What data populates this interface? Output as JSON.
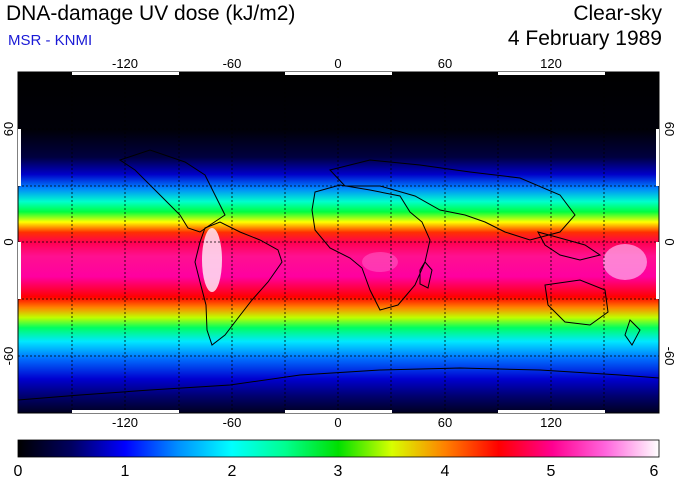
{
  "header": {
    "title": "DNA-damage UV dose (kJ/m2)",
    "subtitle": "MSR - KNMI",
    "sky_condition": "Clear-sky",
    "date": "4 February 1989"
  },
  "map": {
    "lon_ticks_top": [
      "-120",
      "-60",
      "0",
      "60",
      "120"
    ],
    "lon_ticks_bottom": [
      "-120",
      "-60",
      "0",
      "60",
      "120"
    ],
    "lat_ticks_left": [
      "60",
      "0",
      "-60"
    ],
    "lat_ticks_right": [
      "60",
      "0",
      "-60"
    ],
    "lon_range": [
      -180,
      180
    ],
    "lat_range": [
      -90,
      90
    ],
    "gridlines": "dashed every 30 degrees"
  },
  "colorbar": {
    "labels": [
      "0",
      "1",
      "2",
      "3",
      "4",
      "5",
      "6"
    ],
    "min": 0,
    "max": 6,
    "stops": [
      {
        "value": 0.0,
        "color": "#000000"
      },
      {
        "value": 0.5,
        "color": "#000060"
      },
      {
        "value": 1.0,
        "color": "#0000ff"
      },
      {
        "value": 1.5,
        "color": "#0090ff"
      },
      {
        "value": 2.0,
        "color": "#00ffff"
      },
      {
        "value": 2.5,
        "color": "#00ff90"
      },
      {
        "value": 3.0,
        "color": "#00e000"
      },
      {
        "value": 3.5,
        "color": "#d8ff00"
      },
      {
        "value": 4.0,
        "color": "#ff8000"
      },
      {
        "value": 4.5,
        "color": "#ff0000"
      },
      {
        "value": 5.0,
        "color": "#ff0090"
      },
      {
        "value": 5.5,
        "color": "#ff66dd"
      },
      {
        "value": 6.0,
        "color": "#ffffff"
      }
    ]
  }
}
